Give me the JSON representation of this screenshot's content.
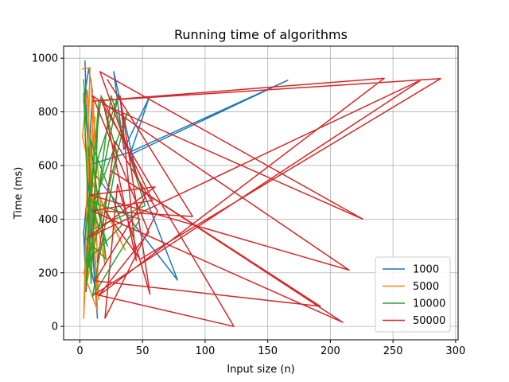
{
  "chart_data": {
    "type": "line",
    "title": "Running time of algorithms",
    "xlabel": "Input size (n)",
    "ylabel": "Time (ms)",
    "xlim": [
      -13,
      302
    ],
    "ylim": [
      -50,
      1045
    ],
    "xticks": [
      0,
      50,
      100,
      150,
      200,
      250,
      300
    ],
    "yticks": [
      0,
      200,
      400,
      600,
      800,
      1000
    ],
    "grid": true,
    "legend": "lower-right",
    "series": [
      {
        "name": "1000",
        "color": "#1f77b4",
        "points": [
          [
            4,
            990
          ],
          [
            6,
            720
          ],
          [
            3,
            840
          ],
          [
            7,
            960
          ],
          [
            10,
            880
          ],
          [
            4,
            310
          ],
          [
            12,
            150
          ],
          [
            8,
            450
          ],
          [
            14,
            30
          ],
          [
            6,
            600
          ],
          [
            40,
            650
          ],
          [
            166,
            918
          ],
          [
            40,
            640
          ],
          [
            55,
            850
          ],
          [
            35,
            660
          ],
          [
            27,
            950
          ],
          [
            45,
            570
          ],
          [
            78,
            173
          ],
          [
            8,
            590
          ],
          [
            3,
            350
          ],
          [
            5,
            130
          ],
          [
            9,
            430
          ],
          [
            12,
            250
          ]
        ]
      },
      {
        "name": "5000",
        "color": "#ff7f0e",
        "points": [
          [
            2,
            960
          ],
          [
            8,
            965
          ],
          [
            5,
            380
          ],
          [
            3,
            30
          ],
          [
            11,
            840
          ],
          [
            6,
            170
          ],
          [
            13,
            360
          ],
          [
            4,
            720
          ],
          [
            15,
            100
          ],
          [
            9,
            920
          ],
          [
            20,
            230
          ],
          [
            7,
            560
          ],
          [
            36,
            285
          ],
          [
            10,
            540
          ],
          [
            2,
            710
          ],
          [
            6,
            880
          ],
          [
            14,
            60
          ],
          [
            3,
            200
          ],
          [
            8,
            280
          ],
          [
            12,
            780
          ]
        ]
      },
      {
        "name": "10000",
        "color": "#2ca02c",
        "points": [
          [
            3,
            920
          ],
          [
            8,
            580
          ],
          [
            5,
            150
          ],
          [
            14,
            620
          ],
          [
            31,
            870
          ],
          [
            9,
            360
          ],
          [
            52,
            450
          ],
          [
            25,
            860
          ],
          [
            7,
            220
          ],
          [
            38,
            800
          ],
          [
            12,
            470
          ],
          [
            22,
            300
          ],
          [
            6,
            470
          ],
          [
            48,
            400
          ],
          [
            10,
            110
          ],
          [
            30,
            640
          ],
          [
            17,
            860
          ],
          [
            4,
            330
          ],
          [
            21,
            250
          ],
          [
            8,
            700
          ],
          [
            34,
            380
          ],
          [
            5,
            240
          ],
          [
            15,
            840
          ],
          [
            9,
            160
          ],
          [
            3,
            870
          ]
        ]
      },
      {
        "name": "50000",
        "color": "#d62728",
        "points": [
          [
            22,
            920
          ],
          [
            90,
            410
          ],
          [
            20,
            430
          ],
          [
            48,
            250
          ],
          [
            288,
            924
          ],
          [
            10,
            840
          ],
          [
            243,
            925
          ],
          [
            15,
            115
          ],
          [
            55,
            350
          ],
          [
            10,
            860
          ],
          [
            215,
            210
          ],
          [
            8,
            490
          ],
          [
            60,
            520
          ],
          [
            6,
            330
          ],
          [
            273,
            920
          ],
          [
            12,
            120
          ],
          [
            123,
            0
          ],
          [
            18,
            830
          ],
          [
            226,
            400
          ],
          [
            16,
            950
          ],
          [
            52,
            480
          ],
          [
            12,
            170
          ],
          [
            192,
            75
          ],
          [
            25,
            580
          ],
          [
            210,
            15
          ],
          [
            10,
            430
          ],
          [
            58,
            470
          ],
          [
            18,
            850
          ],
          [
            45,
            245
          ],
          [
            32,
            860
          ],
          [
            56,
            120
          ],
          [
            30,
            530
          ],
          [
            20,
            30
          ],
          [
            62,
            430
          ],
          [
            28,
            690
          ],
          [
            14,
            240
          ]
        ]
      }
    ]
  }
}
